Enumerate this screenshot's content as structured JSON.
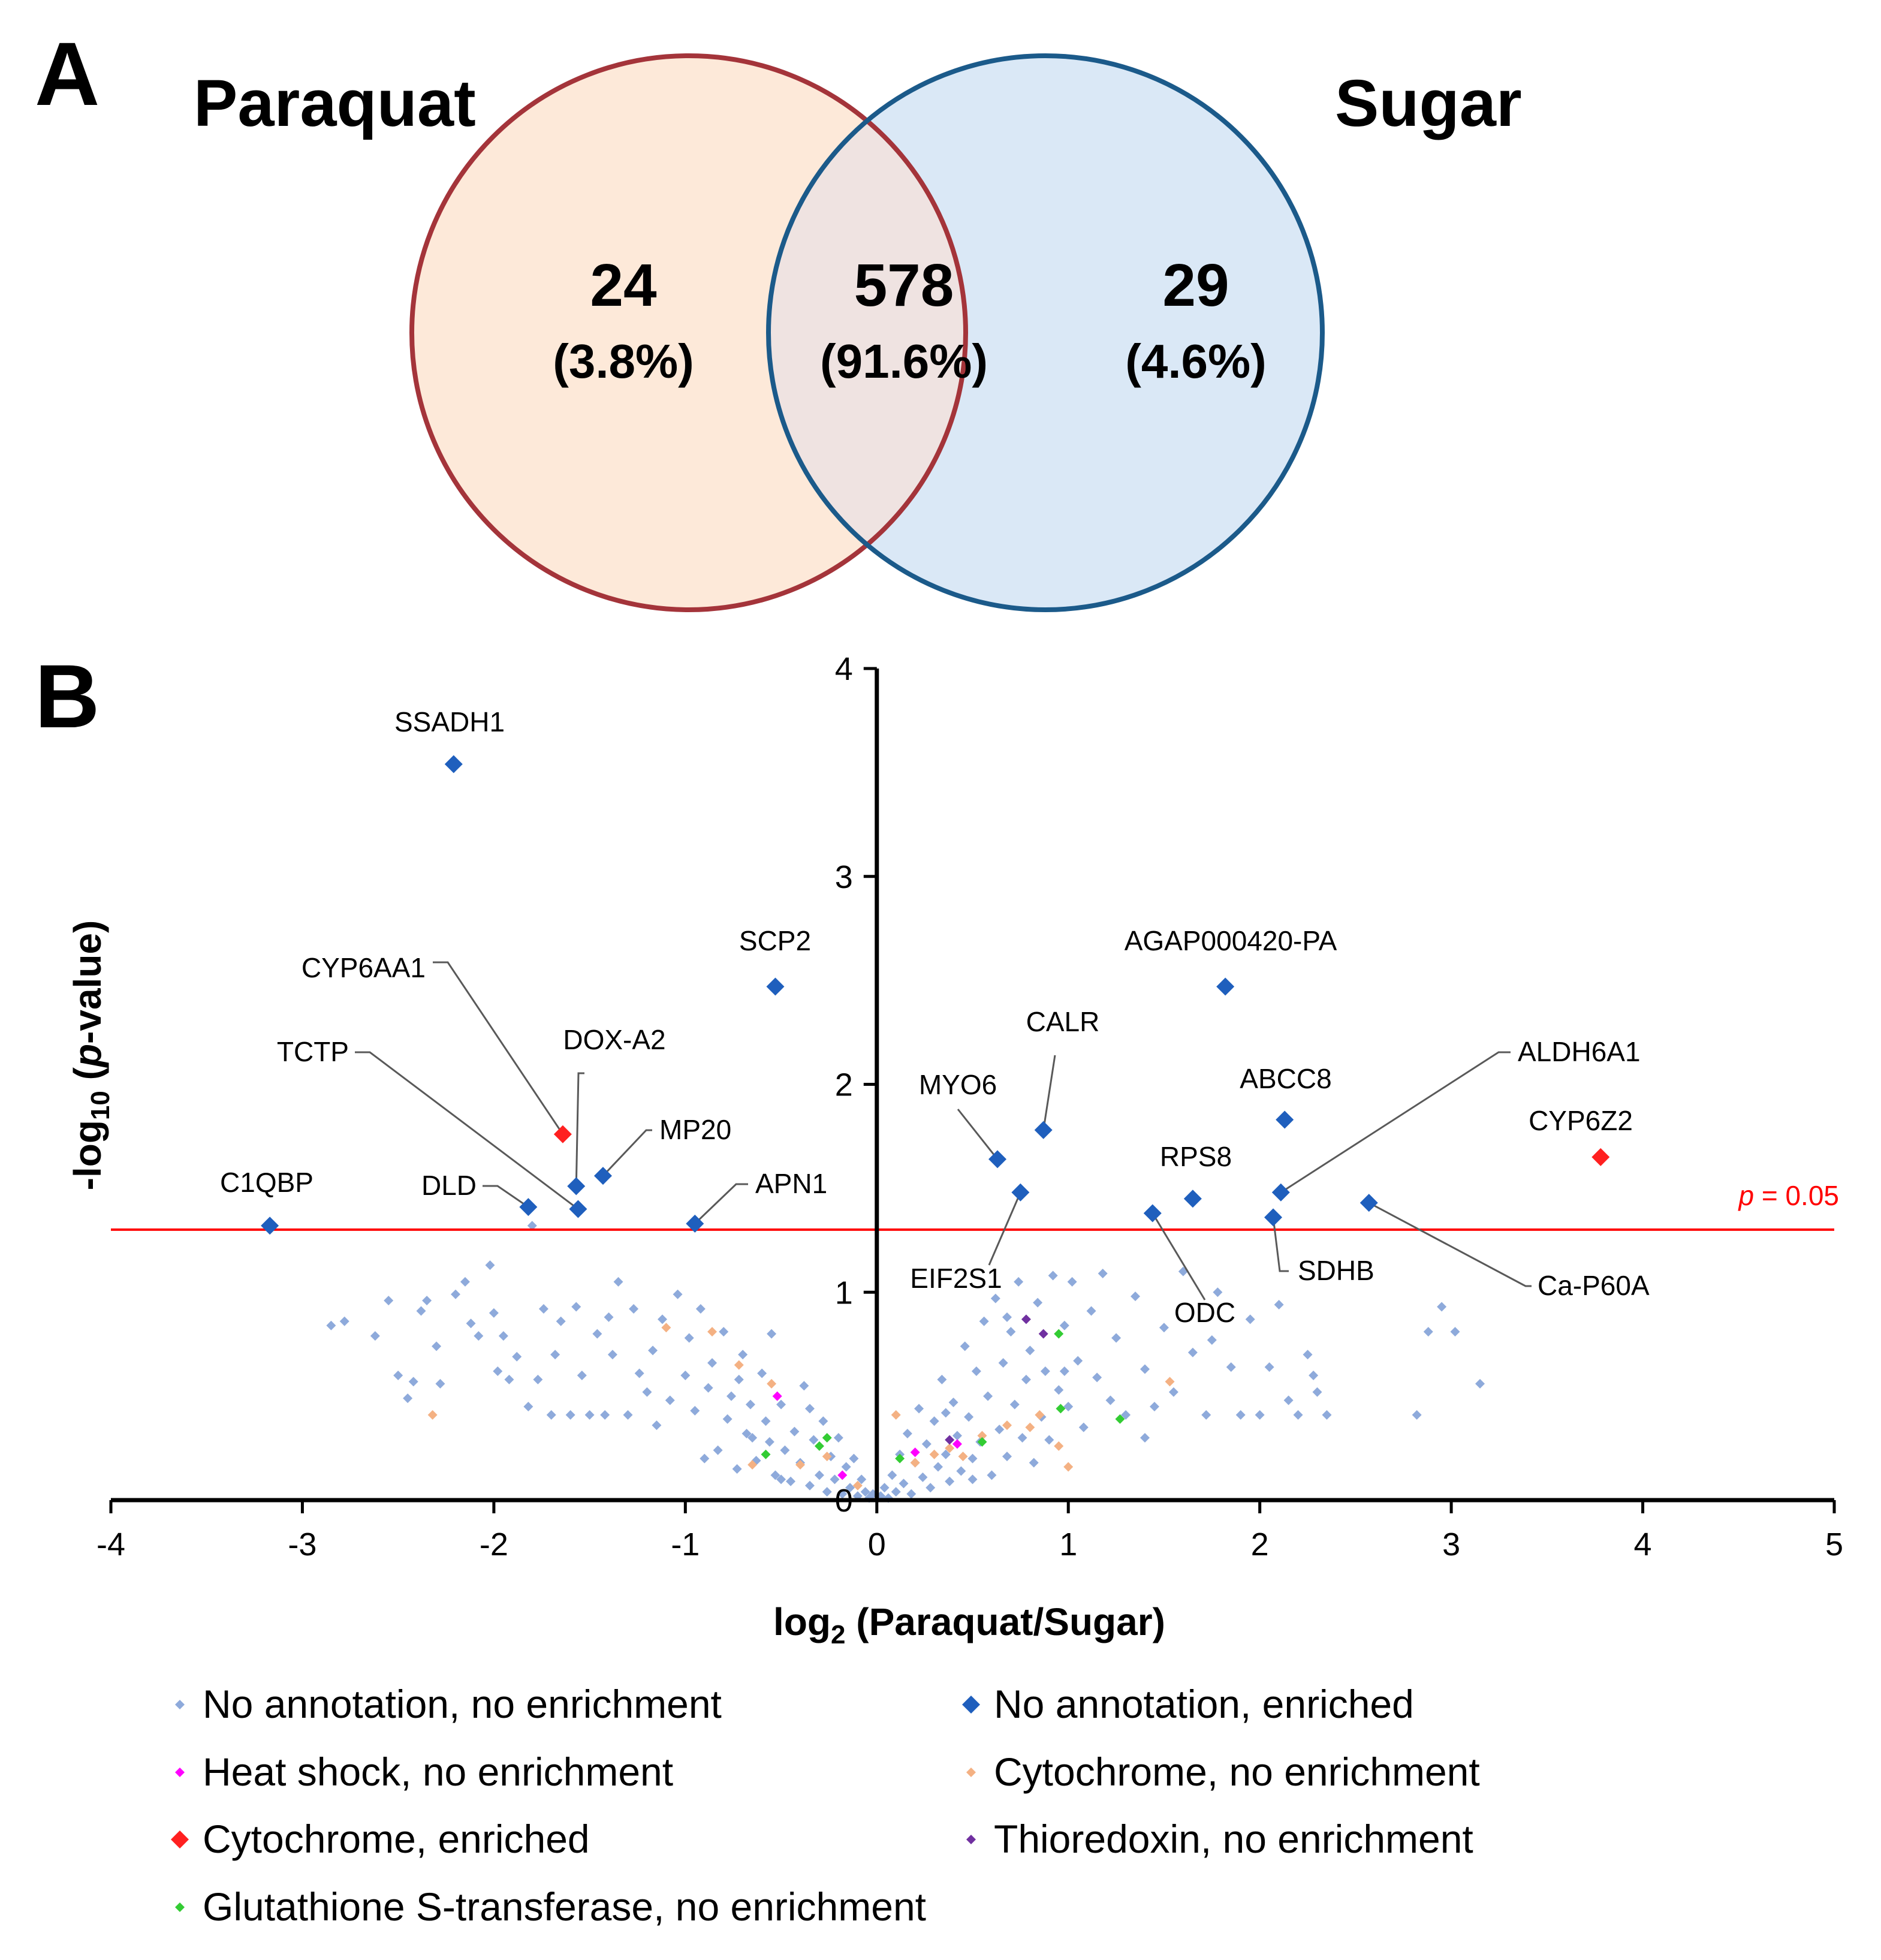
{
  "panel_a": {
    "letter": "A",
    "left_set": "Paraquat",
    "right_set": "Sugar",
    "left_only": {
      "count": "24",
      "percent": "(3.8%)"
    },
    "overlap": {
      "count": "578",
      "percent": "(91.6%)"
    },
    "right_only": {
      "count": "29",
      "percent": "(4.6%)"
    },
    "colors": {
      "left_fill": "#fde9d9",
      "left_stroke": "#a4343a",
      "right_fill": "#dae8f6",
      "right_stroke": "#1b5a8a",
      "overlap_fill": "#efe3e1"
    }
  },
  "panel_b": {
    "letter": "B"
  },
  "chart_data": {
    "type": "scatter",
    "title": "",
    "xlabel": "log2 (Paraquat/Sugar)",
    "xlabel_parts": {
      "pre": "log",
      "sub": "2",
      "post": " (Paraquat/Sugar)"
    },
    "ylabel": "-log10 (p-value)",
    "ylabel_parts": {
      "pre": "-log",
      "sub": "10",
      "mid": " (",
      "italic": "p",
      "post": "-value)"
    },
    "xlim": [
      -4,
      5
    ],
    "ylim": [
      0,
      4
    ],
    "xticks": [
      "-4",
      "-3",
      "-2",
      "-1",
      "0",
      "1",
      "2",
      "3",
      "4",
      "5"
    ],
    "yticks": [
      "0",
      "1",
      "2",
      "3",
      "4"
    ],
    "threshold": {
      "y": 1.301,
      "label_italic": "p",
      "label_rest": " = 0.05",
      "color": "#ff0000"
    },
    "grid": false,
    "legend_position": "bottom",
    "legend": [
      {
        "key": "none_none",
        "label": "No annotation, no enrichment",
        "color": "#8eaadb",
        "marker": "small-diamond"
      },
      {
        "key": "none_enr",
        "label": "No annotation, enriched",
        "color": "#1f5fbd",
        "marker": "diamond"
      },
      {
        "key": "heat_none",
        "label": "Heat shock, no enrichment",
        "color": "#ff00ff",
        "marker": "small-diamond"
      },
      {
        "key": "cyto_none",
        "label": "Cytochrome, no enrichment",
        "color": "#f4b183",
        "marker": "small-diamond"
      },
      {
        "key": "cyto_enr",
        "label": "Cytochrome, enriched",
        "color": "#ff2020",
        "marker": "diamond"
      },
      {
        "key": "thio_none",
        "label": "Thioredoxin, no enrichment",
        "color": "#7030a0",
        "marker": "small-diamond"
      },
      {
        "key": "gst_none",
        "label": "Glutathione S-transferase, no enrichment",
        "color": "#33cc33",
        "marker": "small-diamond"
      }
    ],
    "labeled_points": [
      {
        "name": "SSADH1",
        "x": -2.21,
        "y": 3.54,
        "series": "none_enr"
      },
      {
        "name": "SCP2",
        "x": -0.53,
        "y": 2.47,
        "series": "none_enr"
      },
      {
        "name": "CYP6AA1",
        "x": -1.64,
        "y": 1.76,
        "series": "cyto_enr"
      },
      {
        "name": "DOX-A2",
        "x": -1.57,
        "y": 1.51,
        "series": "none_enr"
      },
      {
        "name": "MP20",
        "x": -1.43,
        "y": 1.56,
        "series": "none_enr"
      },
      {
        "name": "TCTP",
        "x": -1.56,
        "y": 1.4,
        "series": "none_enr"
      },
      {
        "name": "DLD",
        "x": -1.82,
        "y": 1.41,
        "series": "none_enr"
      },
      {
        "name": "C1QBP",
        "x": -3.17,
        "y": 1.32,
        "series": "none_enr"
      },
      {
        "name": "APN1",
        "x": -0.95,
        "y": 1.33,
        "series": "none_enr"
      },
      {
        "name": "AGAP000420-PA",
        "x": 1.82,
        "y": 2.47,
        "series": "none_enr"
      },
      {
        "name": "CALR",
        "x": 0.87,
        "y": 1.78,
        "series": "none_enr"
      },
      {
        "name": "MYO6",
        "x": 0.63,
        "y": 1.64,
        "series": "none_enr"
      },
      {
        "name": "EIF2S1",
        "x": 0.75,
        "y": 1.48,
        "series": "none_enr"
      },
      {
        "name": "ABCC8",
        "x": 2.13,
        "y": 1.83,
        "series": "none_enr"
      },
      {
        "name": "RPS8",
        "x": 1.65,
        "y": 1.45,
        "series": "none_enr"
      },
      {
        "name": "ODC",
        "x": 1.44,
        "y": 1.38,
        "series": "none_enr"
      },
      {
        "name": "ALDH6A1",
        "x": 2.11,
        "y": 1.48,
        "series": "none_enr"
      },
      {
        "name": "SDHB",
        "x": 2.07,
        "y": 1.36,
        "series": "none_enr"
      },
      {
        "name": "CYP6Z2",
        "x": 3.78,
        "y": 1.65,
        "series": "cyto_enr"
      },
      {
        "name": "Ca-P60A",
        "x": 2.57,
        "y": 1.43,
        "series": "none_enr"
      }
    ],
    "other_points": {
      "none_none": [
        [
          -2.85,
          0.84
        ],
        [
          -2.78,
          0.86
        ],
        [
          -2.62,
          0.79
        ],
        [
          -2.55,
          0.96
        ],
        [
          -2.5,
          0.6
        ],
        [
          -2.45,
          0.49
        ],
        [
          -2.42,
          0.57
        ],
        [
          -2.38,
          0.91
        ],
        [
          -2.35,
          0.96
        ],
        [
          -2.3,
          0.74
        ],
        [
          -2.28,
          0.56
        ],
        [
          -2.2,
          0.99
        ],
        [
          -2.15,
          1.05
        ],
        [
          -2.12,
          0.85
        ],
        [
          -2.08,
          0.79
        ],
        [
          -2.02,
          1.13
        ],
        [
          -2.0,
          0.9
        ],
        [
          -1.98,
          0.62
        ],
        [
          -1.95,
          0.79
        ],
        [
          -1.92,
          0.58
        ],
        [
          -1.88,
          0.69
        ],
        [
          -1.82,
          0.45
        ],
        [
          -1.8,
          1.32
        ],
        [
          -1.77,
          0.58
        ],
        [
          -1.74,
          0.92
        ],
        [
          -1.7,
          0.41
        ],
        [
          -1.68,
          0.7
        ],
        [
          -1.65,
          0.86
        ],
        [
          -1.6,
          0.41
        ],
        [
          -1.57,
          0.93
        ],
        [
          -1.54,
          0.6
        ],
        [
          -1.5,
          0.41
        ],
        [
          -1.46,
          0.8
        ],
        [
          -1.42,
          0.41
        ],
        [
          -1.38,
          0.7
        ],
        [
          -1.35,
          1.05
        ],
        [
          -1.3,
          0.41
        ],
        [
          -1.27,
          0.92
        ],
        [
          -1.24,
          0.61
        ],
        [
          -1.2,
          0.52
        ],
        [
          -1.17,
          0.72
        ],
        [
          -1.12,
          0.87
        ],
        [
          -1.08,
          0.48
        ],
        [
          -1.04,
          0.99
        ],
        [
          -1.0,
          0.6
        ],
        [
          -0.98,
          0.78
        ],
        [
          -0.95,
          0.43
        ],
        [
          -0.92,
          0.92
        ],
        [
          -0.88,
          0.54
        ],
        [
          -0.86,
          0.66
        ],
        [
          -0.83,
          0.24
        ],
        [
          -0.8,
          0.81
        ],
        [
          -0.78,
          0.39
        ],
        [
          -0.76,
          0.5
        ],
        [
          -0.73,
          0.15
        ],
        [
          -0.7,
          0.7
        ],
        [
          -0.68,
          0.32
        ],
        [
          -0.66,
          0.46
        ],
        [
          -0.63,
          0.19
        ],
        [
          -0.6,
          0.61
        ],
        [
          -0.58,
          0.38
        ],
        [
          -0.56,
          0.28
        ],
        [
          -0.53,
          0.12
        ],
        [
          -0.5,
          0.46
        ],
        [
          -0.48,
          0.24
        ],
        [
          -0.45,
          0.09
        ],
        [
          -0.43,
          0.33
        ],
        [
          -0.4,
          0.18
        ],
        [
          -0.38,
          0.55
        ],
        [
          -0.35,
          0.07
        ],
        [
          -0.33,
          0.29
        ],
        [
          -0.3,
          0.12
        ],
        [
          -0.28,
          0.38
        ],
        [
          -0.26,
          0.04
        ],
        [
          -0.24,
          0.21
        ],
        [
          -0.22,
          0.1
        ],
        [
          -0.2,
          0.3
        ],
        [
          -0.18,
          0.03
        ],
        [
          -0.16,
          0.16
        ],
        [
          -0.14,
          0.06
        ],
        [
          -0.12,
          0.2
        ],
        [
          -0.1,
          0.02
        ],
        [
          -0.08,
          0.1
        ],
        [
          -0.06,
          0.04
        ],
        [
          -0.04,
          0.01
        ],
        [
          -0.02,
          0.03
        ],
        [
          0.02,
          0.02
        ],
        [
          0.04,
          0.06
        ],
        [
          0.06,
          0.01
        ],
        [
          0.08,
          0.12
        ],
        [
          0.1,
          0.04
        ],
        [
          0.12,
          0.22
        ],
        [
          0.14,
          0.08
        ],
        [
          0.16,
          0.32
        ],
        [
          0.18,
          0.03
        ],
        [
          0.2,
          0.18
        ],
        [
          0.22,
          0.44
        ],
        [
          0.24,
          0.11
        ],
        [
          0.26,
          0.27
        ],
        [
          0.28,
          0.06
        ],
        [
          0.3,
          0.38
        ],
        [
          0.32,
          0.16
        ],
        [
          0.34,
          0.58
        ],
        [
          0.36,
          0.22
        ],
        [
          0.38,
          0.09
        ],
        [
          0.4,
          0.47
        ],
        [
          0.42,
          0.31
        ],
        [
          0.44,
          0.14
        ],
        [
          0.46,
          0.74
        ],
        [
          0.48,
          0.4
        ],
        [
          0.5,
          0.2
        ],
        [
          0.52,
          0.62
        ],
        [
          0.54,
          0.28
        ],
        [
          0.56,
          0.86
        ],
        [
          0.58,
          0.5
        ],
        [
          0.6,
          0.12
        ],
        [
          0.62,
          0.97
        ],
        [
          0.64,
          0.34
        ],
        [
          0.66,
          0.66
        ],
        [
          0.68,
          0.21
        ],
        [
          0.7,
          0.81
        ],
        [
          0.72,
          0.46
        ],
        [
          0.74,
          1.05
        ],
        [
          0.76,
          0.3
        ],
        [
          0.78,
          0.58
        ],
        [
          0.8,
          0.72
        ],
        [
          0.82,
          0.18
        ],
        [
          0.84,
          0.95
        ],
        [
          0.86,
          0.4
        ],
        [
          0.88,
          0.62
        ],
        [
          0.9,
          0.29
        ],
        [
          0.92,
          1.08
        ],
        [
          0.95,
          0.53
        ],
        [
          0.98,
          0.84
        ],
        [
          1.0,
          0.45
        ],
        [
          1.02,
          1.05
        ],
        [
          1.05,
          0.67
        ],
        [
          1.08,
          0.35
        ],
        [
          1.12,
          0.91
        ],
        [
          1.15,
          0.59
        ],
        [
          1.18,
          1.09
        ],
        [
          1.22,
          0.48
        ],
        [
          1.25,
          0.78
        ],
        [
          1.3,
          0.41
        ],
        [
          1.35,
          0.98
        ],
        [
          1.4,
          0.63
        ],
        [
          1.45,
          0.45
        ],
        [
          1.5,
          0.83
        ],
        [
          1.55,
          0.52
        ],
        [
          1.6,
          1.1
        ],
        [
          1.65,
          0.71
        ],
        [
          1.72,
          0.41
        ],
        [
          1.78,
          1.0
        ],
        [
          1.85,
          0.64
        ],
        [
          1.9,
          0.41
        ],
        [
          1.95,
          0.87
        ],
        [
          2.0,
          0.41
        ],
        [
          2.05,
          0.64
        ],
        [
          2.1,
          0.94
        ],
        [
          2.15,
          0.48
        ],
        [
          2.2,
          0.41
        ],
        [
          2.25,
          0.7
        ],
        [
          2.28,
          0.6
        ],
        [
          2.3,
          0.52
        ],
        [
          2.35,
          0.41
        ],
        [
          2.82,
          0.41
        ],
        [
          2.88,
          0.81
        ],
        [
          2.95,
          0.93
        ],
        [
          3.02,
          0.81
        ],
        [
          3.15,
          0.56
        ],
        [
          -0.55,
          0.8
        ],
        [
          -0.65,
          0.3
        ],
        [
          -0.9,
          0.2
        ],
        [
          -1.15,
          0.36
        ],
        [
          -1.4,
          0.88
        ],
        [
          -0.72,
          0.58
        ],
        [
          0.68,
          0.88
        ],
        [
          0.98,
          0.62
        ],
        [
          1.4,
          0.3
        ],
        [
          1.75,
          0.77
        ],
        [
          -0.35,
          0.44
        ],
        [
          0.36,
          0.42
        ],
        [
          -0.5,
          0.1
        ],
        [
          0.5,
          0.1
        ]
      ],
      "cyto_none": [
        [
          -2.32,
          0.41
        ],
        [
          -1.1,
          0.83
        ],
        [
          -0.86,
          0.81
        ],
        [
          -0.72,
          0.65
        ],
        [
          -0.55,
          0.56
        ],
        [
          -0.4,
          0.17
        ],
        [
          -0.65,
          0.17
        ],
        [
          -0.26,
          0.21
        ],
        [
          -0.1,
          0.07
        ],
        [
          0.1,
          0.41
        ],
        [
          0.2,
          0.18
        ],
        [
          0.3,
          0.22
        ],
        [
          0.38,
          0.25
        ],
        [
          0.45,
          0.21
        ],
        [
          0.55,
          0.31
        ],
        [
          0.68,
          0.36
        ],
        [
          0.8,
          0.35
        ],
        [
          0.85,
          0.41
        ],
        [
          0.95,
          0.26
        ],
        [
          1.0,
          0.16
        ],
        [
          1.53,
          0.57
        ]
      ],
      "heat_none": [
        [
          -0.52,
          0.5
        ],
        [
          -0.18,
          0.12
        ],
        [
          0.2,
          0.23
        ],
        [
          0.42,
          0.27
        ]
      ],
      "thio_none": [
        [
          0.38,
          0.29
        ],
        [
          0.78,
          0.87
        ],
        [
          0.87,
          0.8
        ]
      ],
      "gst_none": [
        [
          -0.58,
          0.22
        ],
        [
          -0.3,
          0.26
        ],
        [
          -0.26,
          0.3
        ],
        [
          0.55,
          0.28
        ],
        [
          0.95,
          0.8
        ],
        [
          0.96,
          0.44
        ],
        [
          1.27,
          0.39
        ],
        [
          0.12,
          0.2
        ]
      ]
    }
  }
}
